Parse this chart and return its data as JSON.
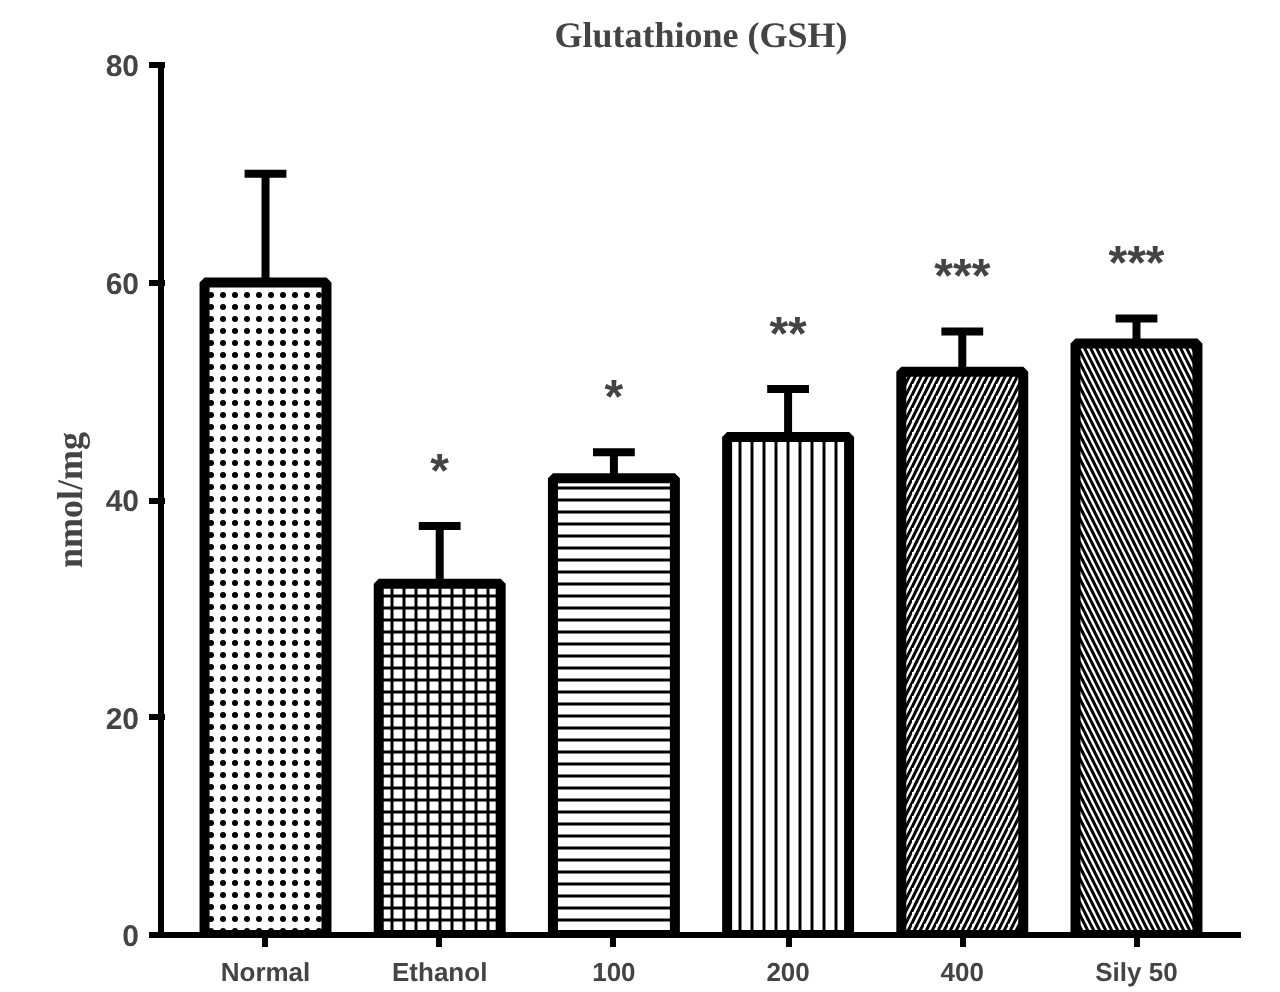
{
  "chart_data": {
    "type": "bar",
    "title": "Glutathione (GSH)",
    "ylabel": "nmol/mg",
    "categories": [
      "Normal",
      "Ethanol",
      "100",
      "200",
      "400",
      "Sily 50"
    ],
    "values": [
      60,
      32.3,
      42,
      45.8,
      51.8,
      54.4
    ],
    "errors": [
      10,
      5.3,
      2.4,
      4.4,
      3.7,
      2.3
    ],
    "color": "#000000",
    "ylim": [
      0,
      80
    ],
    "yticks": [
      0,
      20,
      40,
      60,
      80
    ],
    "grid": false,
    "annotations": [
      {
        "text": "*",
        "x": "Ethanol",
        "y": 32.3
      },
      {
        "text": "*",
        "x": "100",
        "y": 42
      },
      {
        "text": "**",
        "x": "200",
        "y": 45.8
      },
      {
        "text": "***",
        "x": "400",
        "y": 51.8
      },
      {
        "text": "***",
        "x": "Sily 50",
        "y": 54.4
      }
    ]
  }
}
